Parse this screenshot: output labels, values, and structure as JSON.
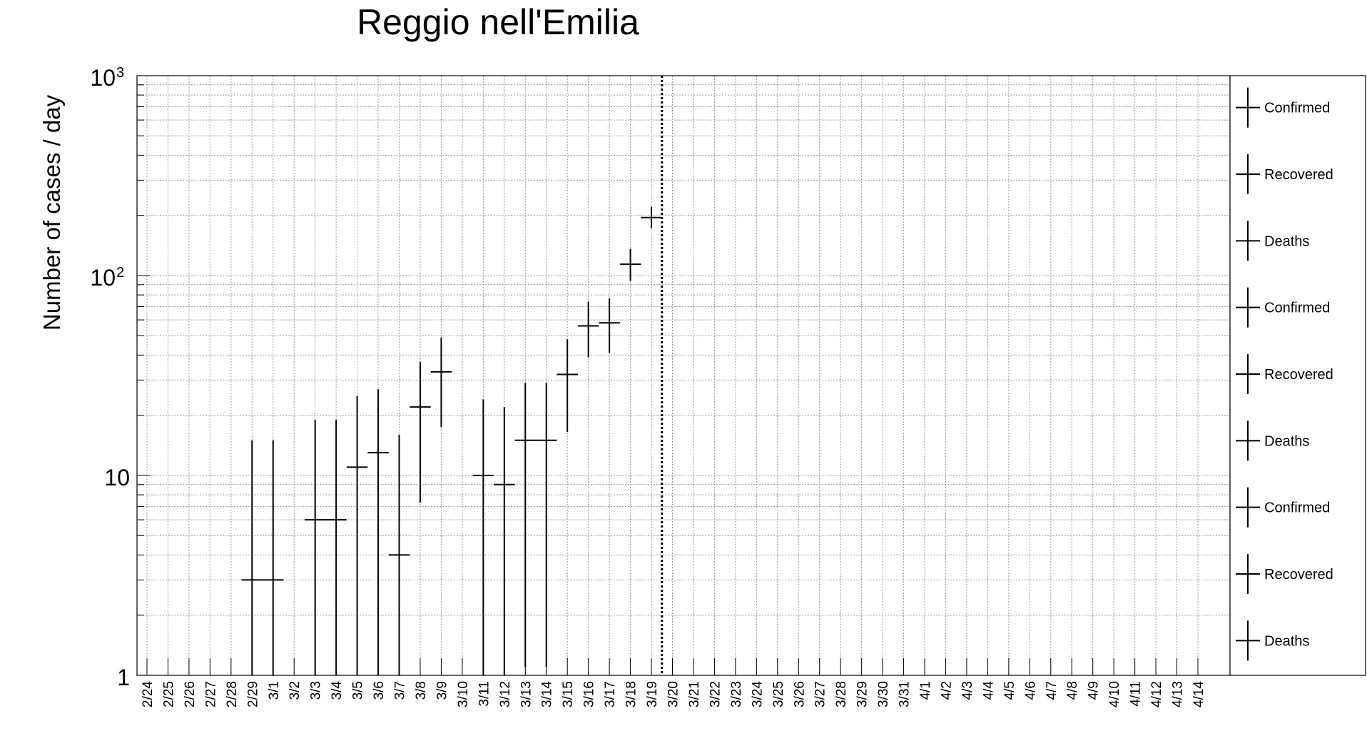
{
  "chart_data": {
    "type": "scatter",
    "title": "Reggio nell'Emilia",
    "ylabel": "Number of cases / day",
    "xlabel": "",
    "yscale": "log",
    "ylim": [
      1,
      1000
    ],
    "y_ticks": [
      {
        "value": 1,
        "base": "1",
        "exp": ""
      },
      {
        "value": 10,
        "base": "10",
        "exp": ""
      },
      {
        "value": 100,
        "base": "10",
        "exp": "2"
      },
      {
        "value": 1000,
        "base": "10",
        "exp": "3"
      }
    ],
    "categories": [
      "2/24",
      "2/25",
      "2/26",
      "2/27",
      "2/28",
      "2/29",
      "3/1",
      "3/2",
      "3/3",
      "3/4",
      "3/5",
      "3/6",
      "3/7",
      "3/8",
      "3/9",
      "3/10",
      "3/11",
      "3/12",
      "3/13",
      "3/14",
      "3/15",
      "3/16",
      "3/17",
      "3/18",
      "3/19",
      "3/20",
      "3/21",
      "3/22",
      "3/23",
      "3/24",
      "3/25",
      "3/26",
      "3/27",
      "3/28",
      "3/29",
      "3/30",
      "3/31",
      "4/1",
      "4/2",
      "4/3",
      "4/4",
      "4/5",
      "4/6",
      "4/7",
      "4/8",
      "4/9",
      "4/10",
      "4/11",
      "4/12",
      "4/13",
      "4/14"
    ],
    "grid": true,
    "legend_position": "right",
    "legend": [
      "Confirmed",
      "Recovered",
      "Deaths",
      "Confirmed",
      "Recovered",
      "Deaths",
      "Confirmed",
      "Recovered",
      "Deaths"
    ],
    "vertical_marker_after": "3/19",
    "series": [
      {
        "name": "Confirmed",
        "points": [
          {
            "x": "2/29",
            "y": 3,
            "ylo": 1,
            "yhi": 15
          },
          {
            "x": "3/1",
            "y": 3,
            "ylo": 1,
            "yhi": 15
          },
          {
            "x": "3/3",
            "y": 6,
            "ylo": 1,
            "yhi": 19
          },
          {
            "x": "3/4",
            "y": 6,
            "ylo": 1,
            "yhi": 19
          },
          {
            "x": "3/5",
            "y": 11,
            "ylo": 1,
            "yhi": 25
          },
          {
            "x": "3/6",
            "y": 13,
            "ylo": 1,
            "yhi": 27
          },
          {
            "x": "3/7",
            "y": 4,
            "ylo": 1,
            "yhi": 16
          },
          {
            "x": "3/8",
            "y": 22,
            "ylo": 7.3,
            "yhi": 37
          },
          {
            "x": "3/9",
            "y": 33,
            "ylo": 17.5,
            "yhi": 49
          },
          {
            "x": "3/11",
            "y": 10,
            "ylo": 1,
            "yhi": 24
          },
          {
            "x": "3/12",
            "y": 9,
            "ylo": 1,
            "yhi": 22
          },
          {
            "x": "3/13",
            "y": 15,
            "ylo": 1.1,
            "yhi": 29
          },
          {
            "x": "3/14",
            "y": 15,
            "ylo": 1.1,
            "yhi": 29
          },
          {
            "x": "3/15",
            "y": 32,
            "ylo": 16.5,
            "yhi": 48
          },
          {
            "x": "3/16",
            "y": 56,
            "ylo": 39,
            "yhi": 74
          },
          {
            "x": "3/17",
            "y": 58,
            "ylo": 41,
            "yhi": 77
          },
          {
            "x": "3/18",
            "y": 114,
            "ylo": 94,
            "yhi": 136
          },
          {
            "x": "3/19",
            "y": 195,
            "ylo": 172,
            "yhi": 221
          }
        ]
      }
    ]
  }
}
